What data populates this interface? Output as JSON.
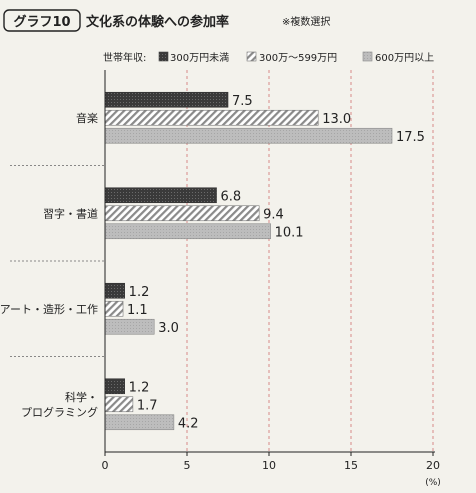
{
  "chart_data": {
    "type": "bar",
    "orientation": "horizontal",
    "graph_label": "グラフ10",
    "title": "文化系の体験への参加率",
    "note": "※複数選択",
    "legend_title": "世帯年収:",
    "legend_placement": "top-right",
    "categories": [
      "音楽",
      "習字・書道",
      "アート・造形・工作",
      "科学・プログラミング"
    ],
    "category_lines": [
      [
        "音楽"
      ],
      [
        "習字・書道"
      ],
      [
        "アート・造形・工作"
      ],
      [
        "科学・",
        "プログラミング"
      ]
    ],
    "series": [
      {
        "name": "300万円未満",
        "values": [
          7.5,
          6.8,
          1.2,
          1.2
        ],
        "color": "#3a3a3a",
        "pattern": "solid-dark"
      },
      {
        "name": "300万～599万円",
        "values": [
          13.0,
          9.4,
          1.1,
          1.7
        ],
        "color": "#bdbdbd",
        "pattern": "diagonal-hatch"
      },
      {
        "name": "600万円以上",
        "values": [
          17.5,
          10.1,
          3.0,
          4.2
        ],
        "color": "#b8b8b8",
        "pattern": "fine-gray"
      }
    ],
    "value_labels": [
      [
        "7.5",
        "6.8",
        "1.2",
        "1.2"
      ],
      [
        "13.0",
        "9.4",
        "1.1",
        "1.7"
      ],
      [
        "17.5",
        "10.1",
        "3.0",
        "4.2"
      ]
    ],
    "xlim": [
      0,
      20
    ],
    "xticks": [
      0,
      5,
      10,
      15,
      20
    ],
    "xunit": "(%)",
    "grid": true
  }
}
